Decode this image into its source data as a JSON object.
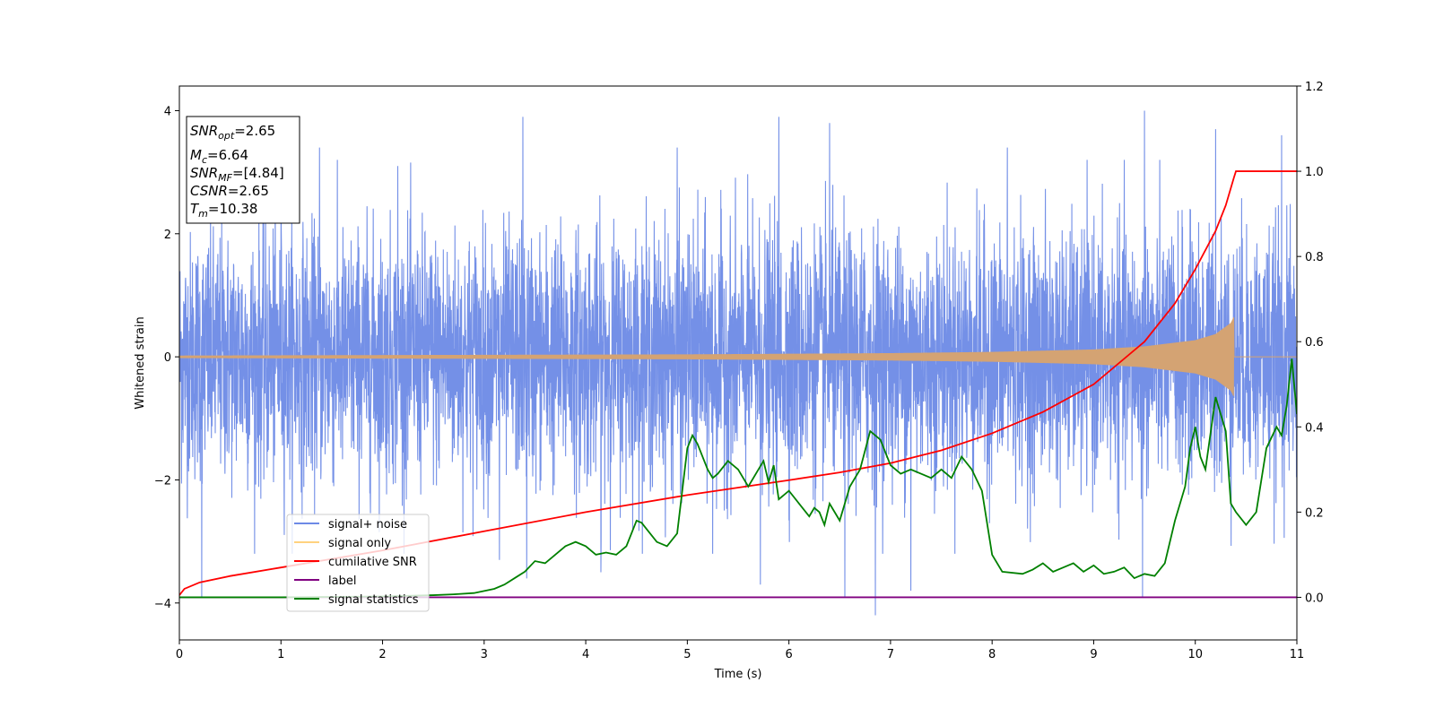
{
  "chart_data": {
    "type": "line",
    "xlabel": "Time (s)",
    "ylabel": "Whitened strain",
    "xlim": [
      0,
      11
    ],
    "ylim": [
      -4.6,
      4.4
    ],
    "y2lim": [
      -0.1,
      1.2
    ],
    "x_ticks": [
      "0",
      "1",
      "2",
      "3",
      "4",
      "5",
      "6",
      "7",
      "8",
      "9",
      "10",
      "11"
    ],
    "y_ticks": [
      "4",
      "2",
      "0",
      "−2",
      "−4"
    ],
    "y2_ticks": [
      "1.2",
      "1.0",
      "0.8",
      "0.6",
      "0.4",
      "0.2",
      "0.0"
    ],
    "legend_position": "lower-left",
    "grid": false,
    "info_box": {
      "snr_opt": {
        "main": "SNR",
        "sub": "opt",
        "value": "=2.65"
      },
      "mc": {
        "main": "M",
        "sub": "c",
        "value": "=6.64"
      },
      "snr_mf": {
        "main": "SNR",
        "sub": "MF",
        "value": "=[4.84]"
      },
      "csnr": {
        "main": "CSNR",
        "value": "=2.65"
      },
      "tm": {
        "main": "T",
        "sub": "m",
        "value": "=10.38"
      }
    },
    "series": [
      {
        "name": "signal+ noise",
        "color": "#6d8ae6",
        "axis": "left",
        "style": "noise",
        "amplitude_sd": 1.0,
        "extremes": [
          [
            0.22,
            -3.9
          ],
          [
            1.0,
            3.1
          ],
          [
            1.38,
            3.4
          ],
          [
            2.15,
            3.1
          ],
          [
            3.15,
            -3.3
          ],
          [
            3.38,
            3.9
          ],
          [
            3.42,
            -3.6
          ],
          [
            4.15,
            -3.5
          ],
          [
            4.9,
            3.4
          ],
          [
            5.25,
            -3.2
          ],
          [
            5.72,
            -3.7
          ],
          [
            5.9,
            3.9
          ],
          [
            6.4,
            3.8
          ],
          [
            6.55,
            -3.9
          ],
          [
            6.85,
            -4.2
          ],
          [
            7.2,
            -3.8
          ],
          [
            8.15,
            3.4
          ],
          [
            9.5,
            4.0
          ],
          [
            9.48,
            -3.9
          ],
          [
            10.2,
            3.7
          ],
          [
            10.85,
            3.6
          ],
          [
            11.0,
            -3.3
          ]
        ]
      },
      {
        "name": "signal only",
        "color": "#d4a373",
        "axis": "left",
        "style": "chirp",
        "envelope": [
          [
            0,
            0.02
          ],
          [
            5,
            0.04
          ],
          [
            7,
            0.06
          ],
          [
            8,
            0.08
          ],
          [
            9,
            0.12
          ],
          [
            9.5,
            0.17
          ],
          [
            10,
            0.27
          ],
          [
            10.2,
            0.37
          ],
          [
            10.35,
            0.55
          ],
          [
            10.38,
            0.65
          ]
        ],
        "merger_time": 10.38
      },
      {
        "name": "cumilative SNR",
        "color": "#ff0000",
        "axis": "right",
        "x": [
          0,
          0.05,
          0.2,
          0.5,
          1,
          2,
          3,
          4,
          5,
          6,
          6.5,
          7,
          7.5,
          8,
          8.5,
          9,
          9.5,
          9.8,
          10.0,
          10.2,
          10.3,
          10.38,
          10.4,
          11
        ],
        "values": [
          0.005,
          0.02,
          0.035,
          0.05,
          0.07,
          0.11,
          0.155,
          0.2,
          0.24,
          0.275,
          0.293,
          0.315,
          0.345,
          0.385,
          0.435,
          0.5,
          0.6,
          0.69,
          0.77,
          0.86,
          0.92,
          0.985,
          1.0,
          1.0
        ]
      },
      {
        "name": "label",
        "color": "#800080",
        "axis": "right",
        "x": [
          0,
          11
        ],
        "values": [
          0.0,
          0.0
        ]
      },
      {
        "name": "signal statistics",
        "color": "#008000",
        "axis": "right",
        "x": [
          0,
          1,
          2,
          2.5,
          2.7,
          2.9,
          3.0,
          3.1,
          3.2,
          3.3,
          3.4,
          3.5,
          3.6,
          3.7,
          3.8,
          3.9,
          4.0,
          4.1,
          4.2,
          4.3,
          4.4,
          4.5,
          4.55,
          4.6,
          4.7,
          4.8,
          4.9,
          5.0,
          5.05,
          5.1,
          5.15,
          5.2,
          5.25,
          5.3,
          5.4,
          5.5,
          5.6,
          5.7,
          5.75,
          5.8,
          5.85,
          5.9,
          6.0,
          6.1,
          6.2,
          6.25,
          6.3,
          6.35,
          6.4,
          6.45,
          6.5,
          6.6,
          6.7,
          6.8,
          6.85,
          6.9,
          7.0,
          7.1,
          7.2,
          7.3,
          7.4,
          7.5,
          7.6,
          7.7,
          7.8,
          7.9,
          8.0,
          8.1,
          8.3,
          8.4,
          8.5,
          8.6,
          8.7,
          8.8,
          8.9,
          9.0,
          9.1,
          9.2,
          9.3,
          9.4,
          9.5,
          9.6,
          9.7,
          9.8,
          9.9,
          9.95,
          10.0,
          10.05,
          10.1,
          10.2,
          10.3,
          10.35,
          10.4,
          10.5,
          10.6,
          10.7,
          10.8,
          10.85,
          10.9,
          10.95,
          11.0
        ],
        "values": [
          0.0,
          0.0,
          0.002,
          0.005,
          0.007,
          0.01,
          0.015,
          0.02,
          0.03,
          0.045,
          0.06,
          0.085,
          0.08,
          0.1,
          0.12,
          0.13,
          0.12,
          0.1,
          0.105,
          0.1,
          0.12,
          0.18,
          0.175,
          0.16,
          0.13,
          0.12,
          0.15,
          0.35,
          0.38,
          0.36,
          0.33,
          0.3,
          0.28,
          0.29,
          0.32,
          0.3,
          0.26,
          0.3,
          0.32,
          0.27,
          0.31,
          0.23,
          0.25,
          0.22,
          0.19,
          0.21,
          0.2,
          0.17,
          0.22,
          0.2,
          0.18,
          0.26,
          0.3,
          0.39,
          0.38,
          0.37,
          0.31,
          0.29,
          0.3,
          0.29,
          0.28,
          0.3,
          0.28,
          0.33,
          0.3,
          0.25,
          0.1,
          0.06,
          0.055,
          0.065,
          0.08,
          0.06,
          0.07,
          0.08,
          0.06,
          0.075,
          0.055,
          0.06,
          0.07,
          0.045,
          0.055,
          0.05,
          0.08,
          0.18,
          0.26,
          0.35,
          0.4,
          0.33,
          0.3,
          0.47,
          0.39,
          0.22,
          0.2,
          0.17,
          0.2,
          0.35,
          0.4,
          0.38,
          0.45,
          0.56,
          0.43
        ]
      }
    ]
  }
}
